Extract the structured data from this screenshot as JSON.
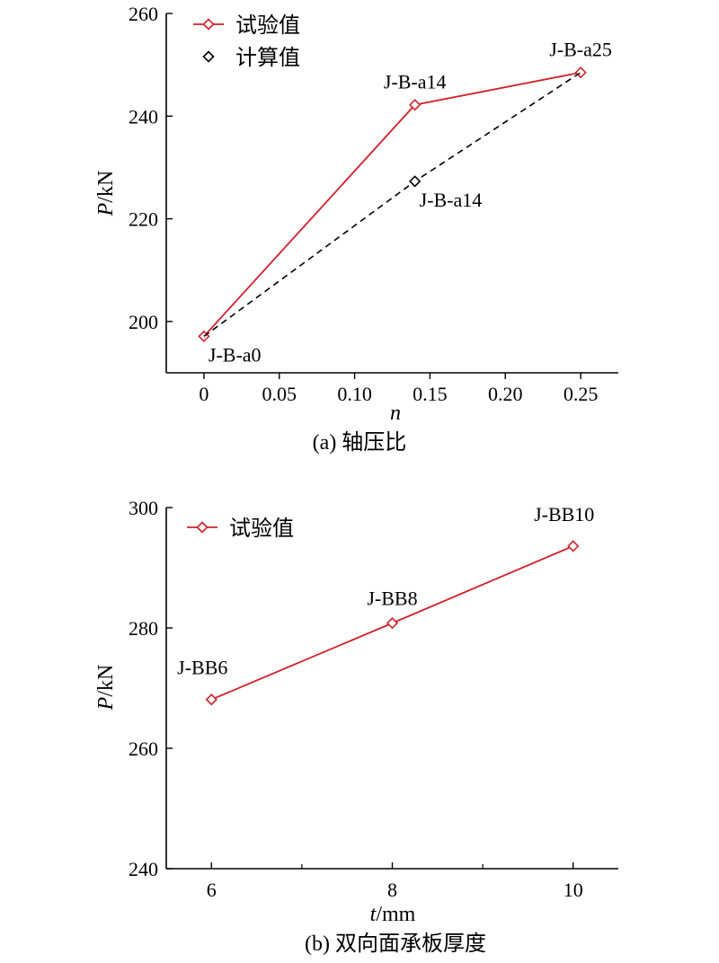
{
  "chart_data": [
    {
      "type": "line",
      "caption": "(a) 轴压比",
      "xlabel_italic": "n",
      "xlabel_rest": "",
      "ylabel_italic": "P",
      "ylabel_rest": "/kN",
      "xlim": [
        -0.025,
        0.275
      ],
      "ylim": [
        190,
        260
      ],
      "x_ticks": [
        0,
        0.05,
        0.1,
        0.15,
        0.2,
        0.25
      ],
      "x_tick_labels": [
        "0",
        "0.05",
        "0.10",
        "0.15",
        "0.20",
        "0.25"
      ],
      "y_ticks": [
        200,
        220,
        240,
        260
      ],
      "y_tick_labels": [
        "200",
        "220",
        "240",
        "260"
      ],
      "legend_position": "top-left",
      "series": [
        {
          "name": "试验值",
          "color": "#d0202a",
          "line_style": "solid",
          "marker": "diamond",
          "x": [
            0,
            0.14,
            0.25
          ],
          "y": [
            197.1,
            242.2,
            248.5
          ]
        },
        {
          "name": "计算值",
          "color": "#000000",
          "line_style": "dashed",
          "marker": "diamond",
          "x": [
            0,
            0.14,
            0.25
          ],
          "y": [
            197.1,
            227.3,
            248.5
          ]
        }
      ],
      "annotations": [
        {
          "text": "J-B-a0",
          "x": 0,
          "y": 197.1,
          "anchor": "below-right"
        },
        {
          "text": "J-B-a14",
          "x": 0.14,
          "y": 242.2,
          "anchor": "above"
        },
        {
          "text": "J-B-a25",
          "x": 0.25,
          "y": 248.5,
          "anchor": "above"
        },
        {
          "text": "J-B-a14",
          "x": 0.14,
          "y": 227.3,
          "anchor": "below-right"
        }
      ]
    },
    {
      "type": "line",
      "caption": "(b) 双向面承板厚度",
      "xlabel_italic": "t",
      "xlabel_rest": "/mm",
      "ylabel_italic": "P",
      "ylabel_rest": "/kN",
      "xlim": [
        5.5,
        10.5
      ],
      "ylim": [
        240,
        300
      ],
      "x_ticks": [
        6,
        8,
        10
      ],
      "x_tick_labels": [
        "6",
        "8",
        "10"
      ],
      "x_minor_ticks": [
        7,
        9
      ],
      "y_ticks": [
        240,
        260,
        280,
        300
      ],
      "y_tick_labels": [
        "240",
        "260",
        "280",
        "300"
      ],
      "legend_position": "top-left",
      "series": [
        {
          "name": "试验值",
          "color": "#d0202a",
          "line_style": "solid",
          "marker": "diamond",
          "x": [
            6,
            8,
            10
          ],
          "y": [
            268.1,
            280.8,
            293.6
          ]
        }
      ],
      "annotations": [
        {
          "text": "J-BB6",
          "x": 6,
          "y": 268.1,
          "anchor": "above-left"
        },
        {
          "text": "J-BB8",
          "x": 8,
          "y": 280.8,
          "anchor": "above"
        },
        {
          "text": "J-BB10",
          "x": 10,
          "y": 293.6,
          "anchor": "above-left"
        }
      ]
    }
  ]
}
